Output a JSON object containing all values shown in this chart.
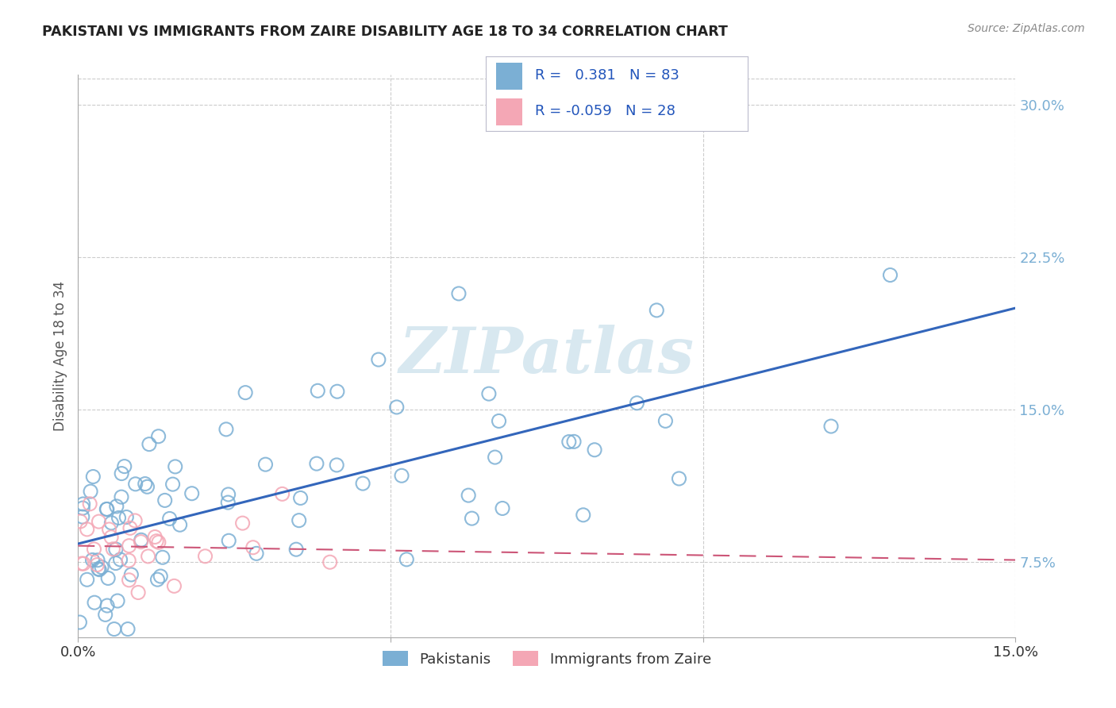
{
  "title": "PAKISTANI VS IMMIGRANTS FROM ZAIRE DISABILITY AGE 18 TO 34 CORRELATION CHART",
  "source": "Source: ZipAtlas.com",
  "ylabel": "Disability Age 18 to 34",
  "ytick_labels": [
    "7.5%",
    "15.0%",
    "22.5%",
    "30.0%"
  ],
  "ytick_values": [
    0.075,
    0.15,
    0.225,
    0.3
  ],
  "xlim": [
    0.0,
    0.15
  ],
  "ylim": [
    0.038,
    0.315
  ],
  "legend_R_blue": "0.381",
  "legend_N_blue": "83",
  "legend_R_pink": "-0.059",
  "legend_N_pink": "28",
  "legend_label_blue": "Pakistanis",
  "legend_label_pink": "Immigrants from Zaire",
  "blue_color": "#7BAFD4",
  "pink_color": "#F4A7B5",
  "trend_blue_color": "#3366BB",
  "trend_pink_color": "#CC5577",
  "watermark_color": "#D8E8F0",
  "grid_color": "#CCCCCC",
  "blue_trend_x0": 0.0,
  "blue_trend_y0": 0.084,
  "blue_trend_x1": 0.15,
  "blue_trend_y1": 0.2,
  "pink_trend_x0": 0.0,
  "pink_trend_y0": 0.083,
  "pink_trend_x1": 0.15,
  "pink_trend_y1": 0.076
}
